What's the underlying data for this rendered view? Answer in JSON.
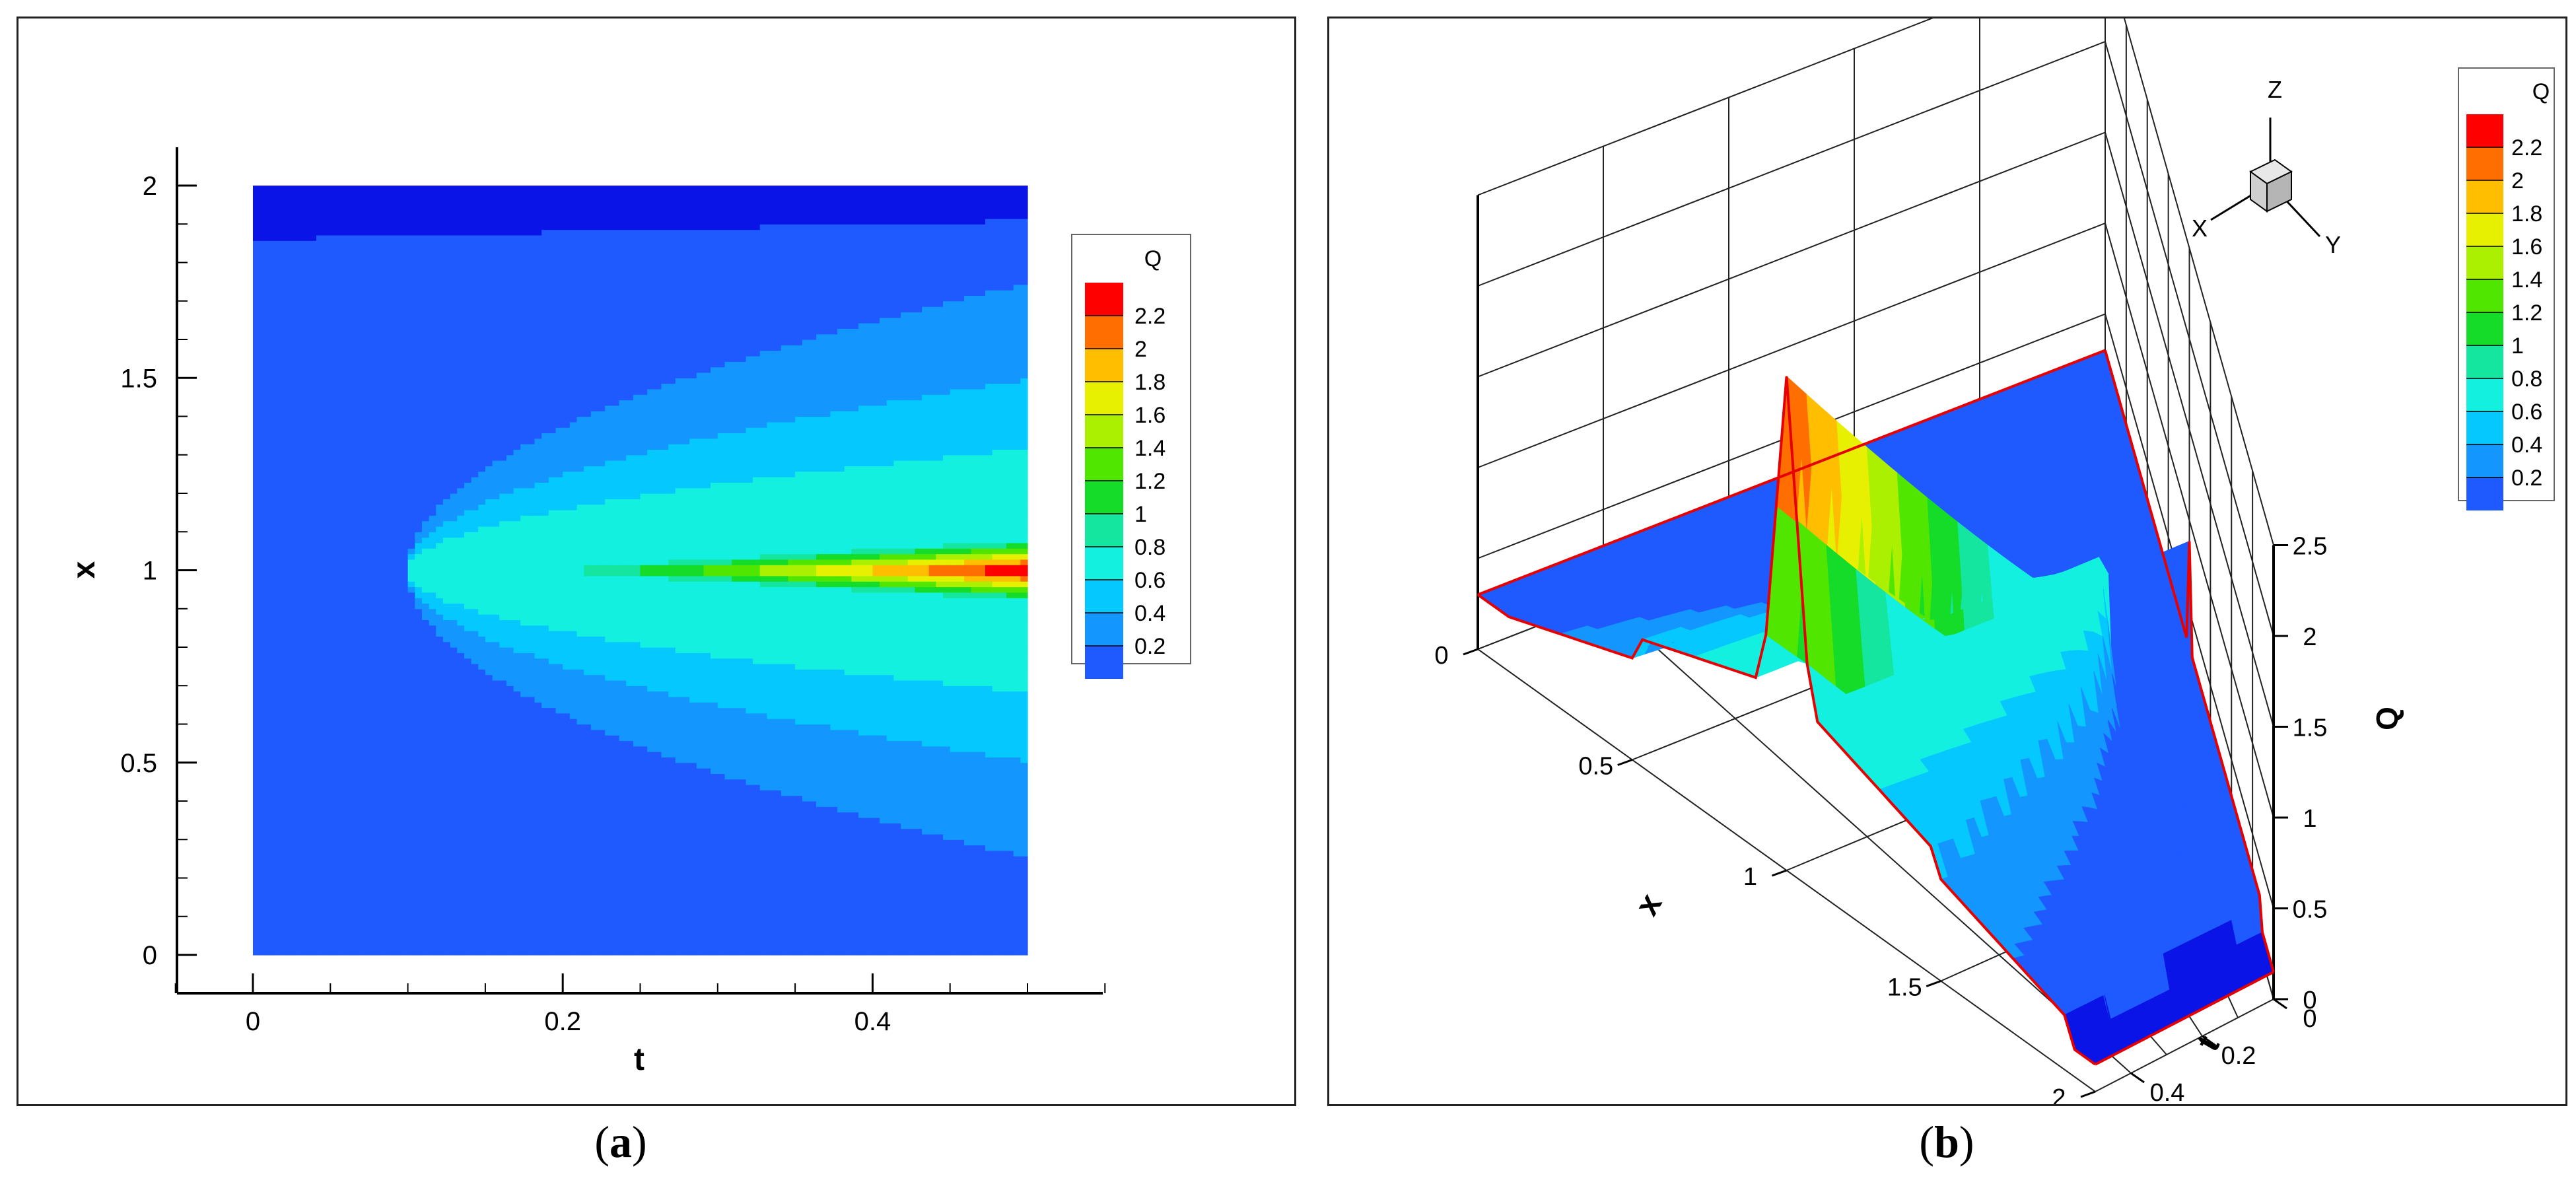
{
  "chart_data": [
    {
      "type": "heatmap",
      "panel": "a",
      "xlabel": "t",
      "ylabel": "x",
      "xlim": [
        0,
        0.5
      ],
      "ylim": [
        0,
        2
      ],
      "x_ticks": [
        "0",
        "0.2",
        "0.4"
      ],
      "y_ticks": [
        "0",
        "0.5",
        "1",
        "1.5",
        "2"
      ],
      "legend_title": "Q",
      "legend_levels": [
        "2.2",
        "2",
        "1.8",
        "1.6",
        "1.4",
        "1.2",
        "1",
        "0.8",
        "0.6",
        "0.4",
        "0.2"
      ],
      "legend_placement": "right",
      "colorscale": [
        "#0a14e6",
        "#1e5aff",
        "#1496ff",
        "#05c8ff",
        "#14f0e0",
        "#14e6a0",
        "#14dc28",
        "#50e600",
        "#aaf000",
        "#e6f000",
        "#ffbe00",
        "#ff6e00",
        "#ff0000"
      ]
    },
    {
      "type": "surface",
      "panel": "b",
      "xlabel": "x",
      "ylabel": "t",
      "zlabel": "Q",
      "x_ticks": [
        "0",
        "0.5",
        "1",
        "1.5",
        "2"
      ],
      "t_ticks": [
        "0",
        "0.2",
        "0.4"
      ],
      "z_ticks": [
        "0",
        "0.5",
        "1",
        "1.5",
        "2",
        "2.5"
      ],
      "legend_title": "Q",
      "legend_levels": [
        "2.2",
        "2",
        "1.8",
        "1.6",
        "1.4",
        "1.2",
        "1",
        "0.8",
        "0.6",
        "0.4",
        "0.2"
      ],
      "legend_placement": "top-right",
      "axis_triad": [
        "X",
        "Y",
        "Z"
      ],
      "peak": {
        "t": 0.5,
        "x": 1,
        "Q": 2.3
      }
    }
  ],
  "captions": [
    "a",
    "b"
  ]
}
